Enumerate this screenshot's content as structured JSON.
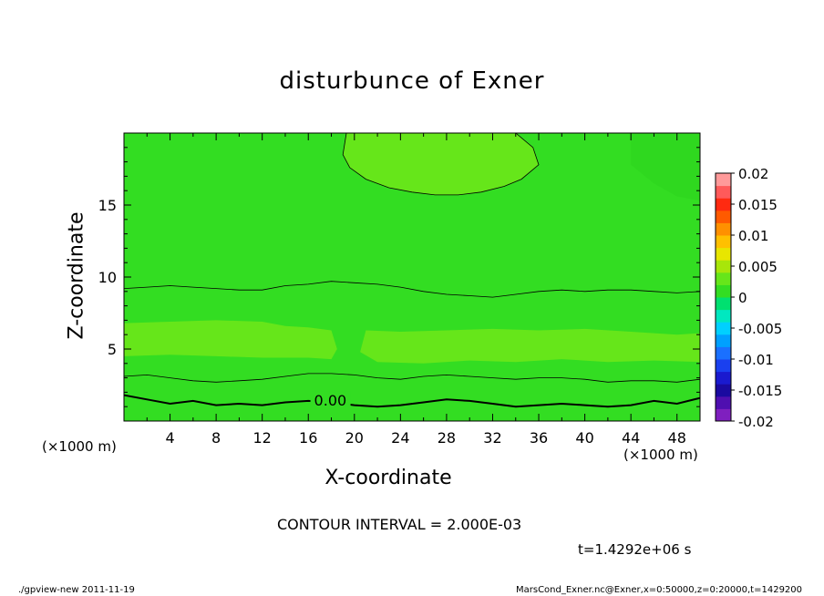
{
  "chart_data": {
    "type": "heatmap",
    "title": "disturbunce of Exner",
    "xlabel": "X-coordinate",
    "ylabel": "Z-coordinate",
    "x_unit": "(×1000 m)",
    "xlim": [
      0,
      50
    ],
    "ylim": [
      0,
      20
    ],
    "x_ticks": [
      4,
      8,
      12,
      16,
      20,
      24,
      28,
      32,
      36,
      40,
      44,
      48
    ],
    "y_ticks": [
      5,
      10,
      15
    ],
    "colorbar": {
      "range": [
        -0.02,
        0.02
      ],
      "tick_labels": [
        "0.02",
        "0.015",
        "0.01",
        "0.005",
        "0",
        "-0.005",
        "-0.01",
        "-0.015",
        "-0.02"
      ],
      "levels": [
        -0.02,
        -0.018,
        -0.016,
        -0.014,
        -0.012,
        -0.01,
        -0.008,
        -0.006,
        -0.004,
        -0.002,
        0,
        0.002,
        0.004,
        0.006,
        0.008,
        0.01,
        0.012,
        0.014,
        0.016,
        0.018
      ],
      "colors": [
        "#7f1fbf",
        "#4f0fb0",
        "#1a0aa0",
        "#1a1acf",
        "#1a40ef",
        "#1a70ff",
        "#00a0ff",
        "#00d0ff",
        "#00e8c0",
        "#00e070",
        "#33dd22",
        "#66e61a",
        "#a8e60a",
        "#e8e600",
        "#ffc000",
        "#ff9000",
        "#ff5a00",
        "#ff2a10",
        "#ff5a5a",
        "#ff9a9a"
      ]
    },
    "contour_interval": "2.000E-03",
    "contour_label": "0.00",
    "field_colors": {
      "background": "#33dd22",
      "positive_band": "#66e61a"
    },
    "contours": [
      {
        "level": "0.00",
        "points": [
          [
            0,
            1.8
          ],
          [
            2,
            1.5
          ],
          [
            4,
            1.2
          ],
          [
            6,
            1.4
          ],
          [
            8,
            1.1
          ],
          [
            10,
            1.2
          ],
          [
            12,
            1.1
          ],
          [
            14,
            1.3
          ],
          [
            16,
            1.4
          ],
          [
            18,
            1.3
          ],
          [
            20,
            1.1
          ],
          [
            22,
            1.0
          ],
          [
            24,
            1.1
          ],
          [
            26,
            1.3
          ],
          [
            28,
            1.5
          ],
          [
            30,
            1.4
          ],
          [
            32,
            1.2
          ],
          [
            34,
            1.0
          ],
          [
            36,
            1.1
          ],
          [
            38,
            1.2
          ],
          [
            40,
            1.1
          ],
          [
            42,
            1.0
          ],
          [
            44,
            1.1
          ],
          [
            46,
            1.4
          ],
          [
            48,
            1.2
          ],
          [
            50,
            1.6
          ]
        ],
        "bold": true
      },
      {
        "level": "0.002a",
        "points": [
          [
            0,
            3.1
          ],
          [
            2,
            3.2
          ],
          [
            4,
            3.0
          ],
          [
            6,
            2.8
          ],
          [
            8,
            2.7
          ],
          [
            10,
            2.8
          ],
          [
            12,
            2.9
          ],
          [
            14,
            3.1
          ],
          [
            16,
            3.3
          ],
          [
            18,
            3.3
          ],
          [
            20,
            3.2
          ],
          [
            22,
            3.0
          ],
          [
            24,
            2.9
          ],
          [
            26,
            3.1
          ],
          [
            28,
            3.2
          ],
          [
            30,
            3.1
          ],
          [
            32,
            3.0
          ],
          [
            34,
            2.9
          ],
          [
            36,
            3.0
          ],
          [
            38,
            3.0
          ],
          [
            40,
            2.9
          ],
          [
            42,
            2.7
          ],
          [
            44,
            2.8
          ],
          [
            46,
            2.8
          ],
          [
            48,
            2.7
          ],
          [
            50,
            2.9
          ]
        ],
        "bold": false
      },
      {
        "level": "0.002b",
        "points": [
          [
            0,
            9.2
          ],
          [
            2,
            9.3
          ],
          [
            4,
            9.4
          ],
          [
            6,
            9.3
          ],
          [
            8,
            9.2
          ],
          [
            10,
            9.1
          ],
          [
            12,
            9.1
          ],
          [
            14,
            9.4
          ],
          [
            16,
            9.5
          ],
          [
            18,
            9.7
          ],
          [
            20,
            9.6
          ],
          [
            22,
            9.5
          ],
          [
            24,
            9.3
          ],
          [
            26,
            9.0
          ],
          [
            28,
            8.8
          ],
          [
            30,
            8.7
          ],
          [
            32,
            8.6
          ],
          [
            34,
            8.8
          ],
          [
            36,
            9.0
          ],
          [
            38,
            9.1
          ],
          [
            40,
            9.0
          ],
          [
            42,
            9.1
          ],
          [
            44,
            9.1
          ],
          [
            46,
            9.0
          ],
          [
            48,
            8.9
          ],
          [
            50,
            9.0
          ]
        ],
        "bold": false
      },
      {
        "level": "0.002c",
        "points": [
          [
            19.3,
            20
          ],
          [
            19.0,
            18.5
          ],
          [
            19.6,
            17.6
          ],
          [
            21,
            16.8
          ],
          [
            23,
            16.2
          ],
          [
            25,
            15.9
          ],
          [
            27,
            15.7
          ],
          [
            29,
            15.7
          ],
          [
            31,
            15.9
          ],
          [
            33,
            16.3
          ],
          [
            34.5,
            16.8
          ],
          [
            36,
            17.8
          ],
          [
            35.5,
            19
          ],
          [
            34,
            20
          ]
        ],
        "bold": false
      }
    ],
    "shaded_regions": [
      {
        "color": "#66e61a",
        "points": [
          [
            0,
            6.8
          ],
          [
            4,
            6.9
          ],
          [
            8,
            7.0
          ],
          [
            12,
            6.9
          ],
          [
            14,
            6.6
          ],
          [
            16,
            6.5
          ],
          [
            18,
            6.3
          ],
          [
            18.5,
            5.0
          ],
          [
            18,
            4.3
          ],
          [
            16,
            4.4
          ],
          [
            12,
            4.4
          ],
          [
            8,
            4.5
          ],
          [
            4,
            4.6
          ],
          [
            0,
            4.5
          ]
        ]
      },
      {
        "color": "#66e61a",
        "points": [
          [
            21,
            6.3
          ],
          [
            24,
            6.2
          ],
          [
            28,
            6.3
          ],
          [
            32,
            6.4
          ],
          [
            36,
            6.3
          ],
          [
            40,
            6.4
          ],
          [
            44,
            6.2
          ],
          [
            48,
            6.0
          ],
          [
            50,
            6.1
          ],
          [
            50,
            4.1
          ],
          [
            46,
            4.2
          ],
          [
            42,
            4.1
          ],
          [
            38,
            4.3
          ],
          [
            34,
            4.1
          ],
          [
            30,
            4.2
          ],
          [
            26,
            4.0
          ],
          [
            22,
            4.1
          ],
          [
            20.5,
            4.8
          ]
        ]
      },
      {
        "color": "#66e61a",
        "points": [
          [
            19.3,
            20
          ],
          [
            19.0,
            18.5
          ],
          [
            19.6,
            17.6
          ],
          [
            21,
            16.8
          ],
          [
            23,
            16.2
          ],
          [
            25,
            15.9
          ],
          [
            27,
            15.7
          ],
          [
            29,
            15.7
          ],
          [
            31,
            15.9
          ],
          [
            33,
            16.3
          ],
          [
            34.5,
            16.8
          ],
          [
            36,
            17.8
          ],
          [
            35.5,
            19
          ],
          [
            34,
            20
          ]
        ]
      },
      {
        "color": "#2fd81f",
        "points": [
          [
            44,
            20
          ],
          [
            50,
            20
          ],
          [
            50,
            15.3
          ],
          [
            48,
            15.6
          ],
          [
            46,
            16.5
          ],
          [
            44,
            17.8
          ]
        ]
      }
    ]
  },
  "labels": {
    "time": "t=1.4292e+06 s",
    "interval_text": "CONTOUR INTERVAL = 2.000E-03",
    "footer_left": "./gpview-new   2011-11-19",
    "footer_right": "MarsCond_Exner.nc@Exner,x=0:50000,z=0:20000,t=1429200"
  }
}
